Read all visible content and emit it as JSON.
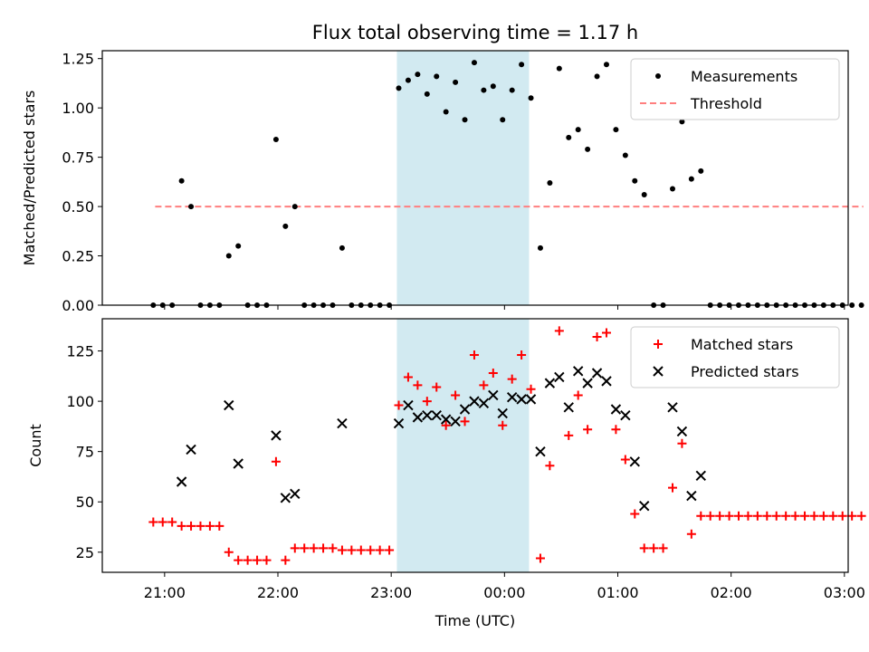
{
  "figure": {
    "title": "Flux total observing time = 1.17 h",
    "xlabel": "Time (UTC)",
    "x_tick_labels": [
      "21:00",
      "22:00",
      "23:00",
      "00:00",
      "01:00",
      "02:00",
      "03:00"
    ]
  },
  "colors": {
    "measurement": "#000000",
    "threshold": "#ff7f7f",
    "matched": "#ff0000",
    "predicted": "#000000",
    "shade": "#add8e6"
  },
  "chart_data": [
    {
      "type": "scatter",
      "panel": "top",
      "ylabel": "Matched/Predicted stars",
      "ylim": [
        0,
        1.29
      ],
      "y_ticks": [
        "0.00",
        "0.25",
        "0.50",
        "0.75",
        "1.00",
        "1.25"
      ],
      "x_unit": "minutes after 21:00 UTC",
      "xlim": [
        -33,
        362
      ],
      "shaded_interval": [
        "23:03",
        "00:13"
      ],
      "legend": {
        "position": "upper right",
        "entries": [
          "Measurements",
          "Threshold"
        ]
      },
      "threshold": {
        "name": "Threshold",
        "value": 0.5,
        "x_range": [
          "20:55",
          "03:10"
        ]
      },
      "series": [
        {
          "name": "Measurements",
          "points": [
            [
              "20:54",
              0
            ],
            [
              "20:59",
              0
            ],
            [
              "21:04",
              0
            ],
            [
              "21:09",
              0.63
            ],
            [
              "21:14",
              0.5
            ],
            [
              "21:19",
              0
            ],
            [
              "21:24",
              0
            ],
            [
              "21:29",
              0
            ],
            [
              "21:34",
              0.25
            ],
            [
              "21:39",
              0.3
            ],
            [
              "21:44",
              0
            ],
            [
              "21:49",
              0
            ],
            [
              "21:54",
              0
            ],
            [
              "21:59",
              0.84
            ],
            [
              "22:04",
              0.4
            ],
            [
              "22:09",
              0.5
            ],
            [
              "22:14",
              0
            ],
            [
              "22:19",
              0
            ],
            [
              "22:24",
              0
            ],
            [
              "22:29",
              0
            ],
            [
              "22:34",
              0.29
            ],
            [
              "22:39",
              0
            ],
            [
              "22:44",
              0
            ],
            [
              "22:49",
              0
            ],
            [
              "22:54",
              0
            ],
            [
              "22:59",
              0
            ],
            [
              "23:04",
              1.1
            ],
            [
              "23:09",
              1.14
            ],
            [
              "23:14",
              1.17
            ],
            [
              "23:19",
              1.07
            ],
            [
              "23:24",
              1.16
            ],
            [
              "23:29",
              0.98
            ],
            [
              "23:34",
              1.13
            ],
            [
              "23:39",
              0.94
            ],
            [
              "23:44",
              1.23
            ],
            [
              "23:49",
              1.09
            ],
            [
              "23:54",
              1.11
            ],
            [
              "23:59",
              0.94
            ],
            [
              "00:04",
              1.09
            ],
            [
              "00:09",
              1.22
            ],
            [
              "00:14",
              1.05
            ],
            [
              "00:19",
              0.29
            ],
            [
              "00:24",
              0.62
            ],
            [
              "00:29",
              1.2
            ],
            [
              "00:34",
              0.85
            ],
            [
              "00:39",
              0.89
            ],
            [
              "00:44",
              0.79
            ],
            [
              "00:49",
              1.16
            ],
            [
              "00:54",
              1.22
            ],
            [
              "00:59",
              0.89
            ],
            [
              "01:04",
              0.76
            ],
            [
              "01:09",
              0.63
            ],
            [
              "01:14",
              0.56
            ],
            [
              "01:19",
              0
            ],
            [
              "01:24",
              0
            ],
            [
              "01:29",
              0.59
            ],
            [
              "01:34",
              0.93
            ],
            [
              "01:39",
              0.64
            ],
            [
              "01:44",
              0.68
            ],
            [
              "01:49",
              0
            ],
            [
              "01:54",
              0
            ],
            [
              "01:59",
              0
            ],
            [
              "02:04",
              0
            ],
            [
              "02:09",
              0
            ],
            [
              "02:14",
              0
            ],
            [
              "02:19",
              0
            ],
            [
              "02:24",
              0
            ],
            [
              "02:29",
              0
            ],
            [
              "02:34",
              0
            ],
            [
              "02:39",
              0
            ],
            [
              "02:44",
              0
            ],
            [
              "02:49",
              0
            ],
            [
              "02:54",
              0
            ],
            [
              "02:59",
              0
            ],
            [
              "03:04",
              0
            ],
            [
              "03:09",
              0
            ]
          ]
        }
      ]
    },
    {
      "type": "scatter",
      "panel": "bottom",
      "ylabel": "Count",
      "ylim": [
        15,
        141
      ],
      "y_ticks": [
        "25",
        "50",
        "75",
        "100",
        "125"
      ],
      "x_unit": "minutes after 21:00 UTC",
      "xlim": [
        -33,
        362
      ],
      "shaded_interval": [
        "23:03",
        "00:13"
      ],
      "legend": {
        "position": "upper right",
        "entries": [
          "Matched stars",
          "Predicted stars"
        ]
      },
      "series": [
        {
          "name": "Matched stars",
          "marker": "+",
          "points": [
            [
              "20:54",
              40
            ],
            [
              "20:59",
              40
            ],
            [
              "21:04",
              40
            ],
            [
              "21:09",
              38
            ],
            [
              "21:14",
              38
            ],
            [
              "21:19",
              38
            ],
            [
              "21:24",
              38
            ],
            [
              "21:29",
              38
            ],
            [
              "21:34",
              25
            ],
            [
              "21:39",
              21
            ],
            [
              "21:44",
              21
            ],
            [
              "21:49",
              21
            ],
            [
              "21:54",
              21
            ],
            [
              "21:59",
              70
            ],
            [
              "22:04",
              21
            ],
            [
              "22:09",
              27
            ],
            [
              "22:14",
              27
            ],
            [
              "22:19",
              27
            ],
            [
              "22:24",
              27
            ],
            [
              "22:29",
              27
            ],
            [
              "22:34",
              26
            ],
            [
              "22:39",
              26
            ],
            [
              "22:44",
              26
            ],
            [
              "22:49",
              26
            ],
            [
              "22:54",
              26
            ],
            [
              "22:59",
              26
            ],
            [
              "23:04",
              98
            ],
            [
              "23:09",
              112
            ],
            [
              "23:14",
              108
            ],
            [
              "23:19",
              100
            ],
            [
              "23:24",
              107
            ],
            [
              "23:29",
              88
            ],
            [
              "23:34",
              103
            ],
            [
              "23:39",
              90
            ],
            [
              "23:44",
              123
            ],
            [
              "23:49",
              108
            ],
            [
              "23:54",
              114
            ],
            [
              "23:59",
              88
            ],
            [
              "00:04",
              111
            ],
            [
              "00:09",
              123
            ],
            [
              "00:14",
              106
            ],
            [
              "00:19",
              22
            ],
            [
              "00:24",
              68
            ],
            [
              "00:29",
              135
            ],
            [
              "00:34",
              83
            ],
            [
              "00:39",
              103
            ],
            [
              "00:44",
              86
            ],
            [
              "00:49",
              132
            ],
            [
              "00:54",
              134
            ],
            [
              "00:59",
              86
            ],
            [
              "01:04",
              71
            ],
            [
              "01:09",
              44
            ],
            [
              "01:14",
              27
            ],
            [
              "01:19",
              27
            ],
            [
              "01:24",
              27
            ],
            [
              "01:29",
              57
            ],
            [
              "01:34",
              79
            ],
            [
              "01:39",
              34
            ],
            [
              "01:44",
              43
            ],
            [
              "01:49",
              43
            ],
            [
              "01:54",
              43
            ],
            [
              "01:59",
              43
            ],
            [
              "02:04",
              43
            ],
            [
              "02:09",
              43
            ],
            [
              "02:14",
              43
            ],
            [
              "02:19",
              43
            ],
            [
              "02:24",
              43
            ],
            [
              "02:29",
              43
            ],
            [
              "02:34",
              43
            ],
            [
              "02:39",
              43
            ],
            [
              "02:44",
              43
            ],
            [
              "02:49",
              43
            ],
            [
              "02:54",
              43
            ],
            [
              "02:59",
              43
            ],
            [
              "03:04",
              43
            ],
            [
              "03:09",
              43
            ]
          ]
        },
        {
          "name": "Predicted stars",
          "marker": "x",
          "points": [
            [
              "21:09",
              60
            ],
            [
              "21:14",
              76
            ],
            [
              "21:34",
              98
            ],
            [
              "21:39",
              69
            ],
            [
              "21:59",
              83
            ],
            [
              "22:04",
              52
            ],
            [
              "22:09",
              54
            ],
            [
              "22:34",
              89
            ],
            [
              "23:04",
              89
            ],
            [
              "23:09",
              98
            ],
            [
              "23:14",
              92
            ],
            [
              "23:19",
              93
            ],
            [
              "23:24",
              93
            ],
            [
              "23:29",
              91
            ],
            [
              "23:34",
              90
            ],
            [
              "23:39",
              96
            ],
            [
              "23:44",
              100
            ],
            [
              "23:49",
              99
            ],
            [
              "23:54",
              103
            ],
            [
              "23:59",
              94
            ],
            [
              "00:04",
              102
            ],
            [
              "00:09",
              101
            ],
            [
              "00:14",
              101
            ],
            [
              "00:19",
              75
            ],
            [
              "00:24",
              109
            ],
            [
              "00:29",
              112
            ],
            [
              "00:34",
              97
            ],
            [
              "00:39",
              115
            ],
            [
              "00:44",
              109
            ],
            [
              "00:49",
              114
            ],
            [
              "00:54",
              110
            ],
            [
              "00:59",
              96
            ],
            [
              "01:04",
              93
            ],
            [
              "01:09",
              70
            ],
            [
              "01:14",
              48
            ],
            [
              "01:29",
              97
            ],
            [
              "01:34",
              85
            ],
            [
              "01:39",
              53
            ],
            [
              "01:44",
              63
            ]
          ]
        }
      ]
    }
  ]
}
